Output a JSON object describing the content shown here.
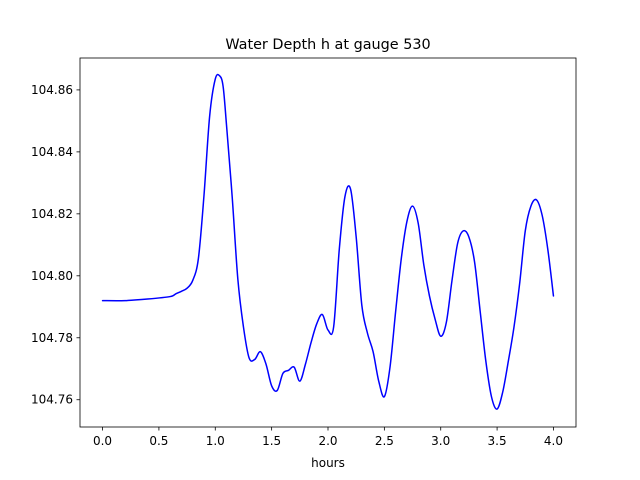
{
  "chart_data": {
    "type": "line",
    "title": "Water Depth h at gauge 530",
    "xlabel": "hours",
    "ylabel": "",
    "xlim": [
      -0.2,
      4.2
    ],
    "ylim": [
      104.7512,
      104.8703
    ],
    "xticks": [
      0.0,
      0.5,
      1.0,
      1.5,
      2.0,
      2.5,
      3.0,
      3.5,
      4.0
    ],
    "xtick_labels": [
      "0.0",
      "0.5",
      "1.0",
      "1.5",
      "2.0",
      "2.5",
      "3.0",
      "3.5",
      "4.0"
    ],
    "yticks": [
      104.76,
      104.78,
      104.8,
      104.82,
      104.84,
      104.86
    ],
    "ytick_labels": [
      "104.76",
      "104.78",
      "104.80",
      "104.82",
      "104.84",
      "104.86"
    ],
    "grid": false,
    "series": [
      {
        "color": "#0000ff",
        "x": [
          0.0,
          0.2,
          0.4,
          0.6,
          0.65,
          0.7,
          0.75,
          0.8,
          0.85,
          0.9,
          0.95,
          1.0,
          1.04,
          1.07,
          1.1,
          1.15,
          1.2,
          1.25,
          1.3,
          1.35,
          1.4,
          1.45,
          1.5,
          1.55,
          1.6,
          1.65,
          1.7,
          1.75,
          1.8,
          1.85,
          1.9,
          1.95,
          2.0,
          2.05,
          2.1,
          2.15,
          2.2,
          2.25,
          2.3,
          2.35,
          2.4,
          2.45,
          2.5,
          2.55,
          2.6,
          2.65,
          2.7,
          2.75,
          2.8,
          2.85,
          2.9,
          2.95,
          3.0,
          3.05,
          3.1,
          3.15,
          3.2,
          3.25,
          3.3,
          3.35,
          3.4,
          3.45,
          3.5,
          3.55,
          3.6,
          3.65,
          3.7,
          3.75,
          3.8,
          3.85,
          3.9,
          3.95,
          4.0
        ],
        "y": [
          104.792,
          104.792,
          104.7925,
          104.7933,
          104.7942,
          104.795,
          104.796,
          104.7985,
          104.8055,
          104.826,
          104.8515,
          104.8635,
          104.8645,
          104.861,
          104.8485,
          104.8255,
          104.799,
          104.7835,
          104.7735,
          104.773,
          104.7755,
          104.7715,
          104.7645,
          104.763,
          104.7685,
          104.7695,
          104.7705,
          104.766,
          104.7715,
          104.7785,
          104.7845,
          104.7875,
          104.7825,
          104.7835,
          104.8085,
          104.8255,
          104.828,
          104.8125,
          104.7905,
          104.7815,
          104.7755,
          104.766,
          104.761,
          104.7705,
          104.7885,
          104.8055,
          104.8175,
          104.8225,
          104.817,
          104.8035,
          104.7935,
          104.786,
          104.7805,
          104.785,
          104.7985,
          104.8105,
          104.8145,
          104.8125,
          104.8045,
          104.7885,
          104.7725,
          104.761,
          104.757,
          104.7625,
          104.7725,
          104.7835,
          104.7975,
          104.8145,
          104.8225,
          104.8245,
          104.8195,
          104.8085,
          104.7935
        ]
      }
    ]
  }
}
